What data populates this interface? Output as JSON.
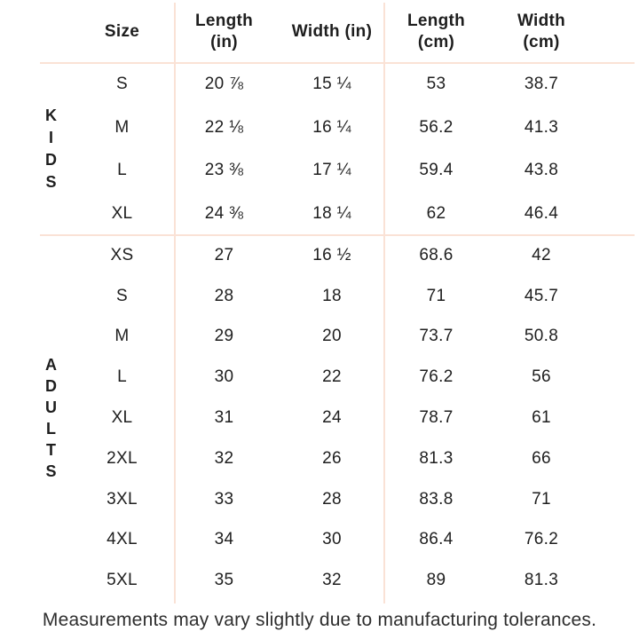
{
  "header": {
    "size": "Size",
    "length_in": "Length\n(in)",
    "width_in": "Width (in)",
    "length_cm": "Length\n(cm)",
    "width_cm": "Width\n(cm)"
  },
  "groups": {
    "kids": "K\nI\nD\nS",
    "adults": "A\nD\nU\nL\nT\nS"
  },
  "chart_data": {
    "type": "table",
    "columns": [
      "Size",
      "Length (in)",
      "Width (in)",
      "Length (cm)",
      "Width (cm)"
    ],
    "row_groups": [
      {
        "name": "KIDS",
        "row_indexes": [
          0,
          1,
          2,
          3
        ]
      },
      {
        "name": "ADULTS",
        "row_indexes": [
          4,
          5,
          6,
          7,
          8,
          9,
          10,
          11,
          12
        ]
      }
    ],
    "rows": [
      {
        "group": "KIDS",
        "size": "S",
        "length_in": "20 ⅞",
        "width_in": "15 ¼",
        "length_cm": "53",
        "width_cm": "38.7"
      },
      {
        "group": "KIDS",
        "size": "M",
        "length_in": "22 ⅛",
        "width_in": "16 ¼",
        "length_cm": "56.2",
        "width_cm": "41.3"
      },
      {
        "group": "KIDS",
        "size": "L",
        "length_in": "23 ⅜",
        "width_in": "17 ¼",
        "length_cm": "59.4",
        "width_cm": "43.8"
      },
      {
        "group": "KIDS",
        "size": "XL",
        "length_in": "24 ⅜",
        "width_in": "18 ¼",
        "length_cm": "62",
        "width_cm": "46.4"
      },
      {
        "group": "ADULTS",
        "size": "XS",
        "length_in": "27",
        "width_in": "16 ½",
        "length_cm": "68.6",
        "width_cm": "42"
      },
      {
        "group": "ADULTS",
        "size": "S",
        "length_in": "28",
        "width_in": "18",
        "length_cm": "71",
        "width_cm": "45.7"
      },
      {
        "group": "ADULTS",
        "size": "M",
        "length_in": "29",
        "width_in": "20",
        "length_cm": "73.7",
        "width_cm": "50.8"
      },
      {
        "group": "ADULTS",
        "size": "L",
        "length_in": "30",
        "width_in": "22",
        "length_cm": "76.2",
        "width_cm": "56"
      },
      {
        "group": "ADULTS",
        "size": "XL",
        "length_in": "31",
        "width_in": "24",
        "length_cm": "78.7",
        "width_cm": "61"
      },
      {
        "group": "ADULTS",
        "size": "2XL",
        "length_in": "32",
        "width_in": "26",
        "length_cm": "81.3",
        "width_cm": "66"
      },
      {
        "group": "ADULTS",
        "size": "3XL",
        "length_in": "33",
        "width_in": "28",
        "length_cm": "83.8",
        "width_cm": "71"
      },
      {
        "group": "ADULTS",
        "size": "4XL",
        "length_in": "34",
        "width_in": "30",
        "length_cm": "86.4",
        "width_cm": "76.2"
      },
      {
        "group": "ADULTS",
        "size": "5XL",
        "length_in": "35",
        "width_in": "32",
        "length_cm": "89",
        "width_cm": "81.3"
      }
    ],
    "footnote": "Measurements may vary slightly due to manufacturing tolerances."
  },
  "footer": {
    "note": "Measurements may vary slightly due to manufacturing tolerances."
  },
  "colors": {
    "divider": "#fae2d6",
    "text": "#1e1e1e",
    "footer_text": "#2e2e2e",
    "background": "#ffffff"
  }
}
